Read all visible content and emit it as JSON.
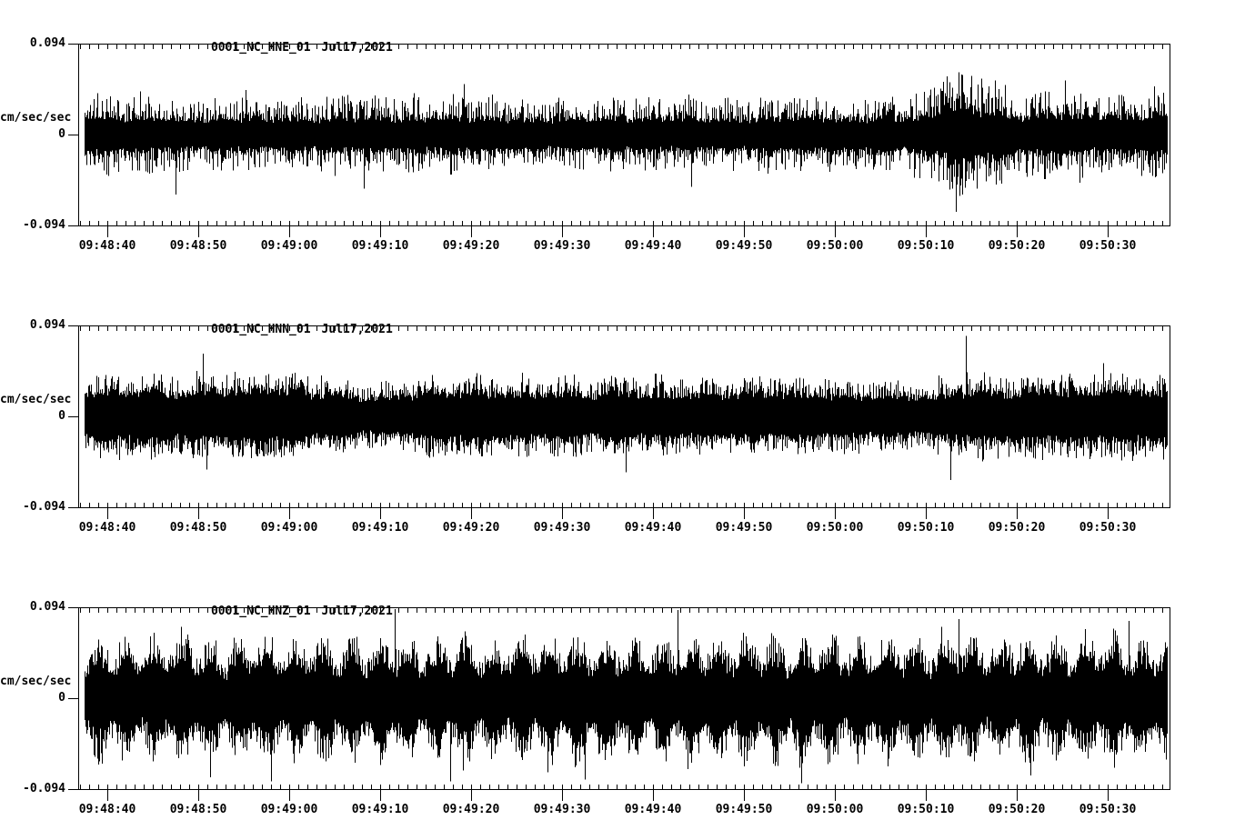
{
  "page": {
    "background": "#ffffff",
    "foreground": "#000000",
    "description": "Three-channel strong-motion seismogram plot"
  },
  "chart_data": [
    {
      "type": "line",
      "kind": "seismogram-waveform",
      "station": "0001_NC_HNE_01",
      "date": "Jul17,2021",
      "ylabel": "cm/sec/sec",
      "y_ticks": [
        "0.094",
        "0",
        "-0.094"
      ],
      "ylim": [
        -0.094,
        0.094
      ],
      "x_tick_labels": [
        "09:48:40",
        "09:48:50",
        "09:49:00",
        "09:49:10",
        "09:49:20",
        "09:49:30",
        "09:49:40",
        "09:49:50",
        "09:50:00",
        "09:50:10",
        "09:50:20",
        "09:50:30"
      ],
      "x_major_interval_sec": 10,
      "x_minor_interval_sec": 1,
      "time_span_sec": 120,
      "envelope_step_sec": 4,
      "envelope_amp": [
        0.046,
        0.044,
        0.046,
        0.04,
        0.042,
        0.04,
        0.04,
        0.044,
        0.044,
        0.042,
        0.044,
        0.042,
        0.04,
        0.04,
        0.042,
        0.04,
        0.042,
        0.04,
        0.04,
        0.042,
        0.044,
        0.04,
        0.042,
        0.046,
        0.072,
        0.056,
        0.046,
        0.052,
        0.044,
        0.048,
        0.044
      ],
      "spikes": [
        {
          "t": 10.0,
          "a": -0.062
        },
        {
          "t": 17.7,
          "a": 0.046
        },
        {
          "t": 30.7,
          "a": -0.056
        },
        {
          "t": 41.7,
          "a": 0.052
        },
        {
          "t": 66.7,
          "a": -0.054
        },
        {
          "t": 94.8,
          "a": 0.06
        },
        {
          "t": 95.8,
          "a": -0.08
        },
        {
          "t": 96.4,
          "a": 0.062
        },
        {
          "t": 98.6,
          "a": 0.058
        },
        {
          "t": 101.2,
          "a": 0.051
        },
        {
          "t": 107.8,
          "a": 0.056
        },
        {
          "t": 117.6,
          "a": 0.05
        }
      ],
      "texture": {
        "core_frac": 0.4,
        "spike_exp": 2.5,
        "wobble_depth": 0.14,
        "wobble_period_sec": 4.3,
        "burst_period_sec": 0,
        "burst_depth": 0,
        "burst_phase": 0,
        "seed": 11
      }
    },
    {
      "type": "line",
      "kind": "seismogram-waveform",
      "station": "0001_NC_HNN_01",
      "date": "Jul17,2021",
      "ylabel": "cm/sec/sec",
      "y_ticks": [
        "0.094",
        "0",
        "-0.094"
      ],
      "ylim": [
        -0.094,
        0.094
      ],
      "x_tick_labels": [
        "09:48:40",
        "09:48:50",
        "09:49:00",
        "09:49:10",
        "09:49:20",
        "09:49:30",
        "09:49:40",
        "09:49:50",
        "09:50:00",
        "09:50:10",
        "09:50:20",
        "09:50:30"
      ],
      "x_major_interval_sec": 10,
      "x_minor_interval_sec": 1,
      "time_span_sec": 120,
      "envelope_step_sec": 4,
      "envelope_amp": [
        0.046,
        0.048,
        0.046,
        0.044,
        0.046,
        0.05,
        0.046,
        0.04,
        0.034,
        0.04,
        0.046,
        0.044,
        0.042,
        0.044,
        0.042,
        0.044,
        0.042,
        0.04,
        0.042,
        0.044,
        0.042,
        0.04,
        0.038,
        0.036,
        0.044,
        0.046,
        0.048,
        0.046,
        0.048,
        0.046,
        0.046
      ],
      "spikes": [
        {
          "t": 13.0,
          "a": 0.065
        },
        {
          "t": 13.4,
          "a": -0.055
        },
        {
          "t": 59.5,
          "a": -0.058
        },
        {
          "t": 95.2,
          "a": -0.066
        },
        {
          "t": 96.9,
          "a": 0.083
        },
        {
          "t": 112.0,
          "a": 0.055
        }
      ],
      "texture": {
        "core_frac": 0.55,
        "spike_exp": 2.2,
        "wobble_depth": 0.12,
        "wobble_period_sec": 5.1,
        "burst_period_sec": 0,
        "burst_depth": 0,
        "burst_phase": 0,
        "seed": 22
      }
    },
    {
      "type": "line",
      "kind": "seismogram-waveform",
      "station": "0001_NC_HNZ_01",
      "date": "Jul17,2021",
      "ylabel": "cm/sec/sec",
      "y_ticks": [
        "0.094",
        "0",
        "-0.094"
      ],
      "ylim": [
        -0.094,
        0.094
      ],
      "x_tick_labels": [
        "09:48:40",
        "09:48:50",
        "09:49:00",
        "09:49:10",
        "09:49:20",
        "09:49:30",
        "09:49:40",
        "09:49:50",
        "09:50:00",
        "09:50:10",
        "09:50:20",
        "09:50:30"
      ],
      "x_major_interval_sec": 10,
      "x_minor_interval_sec": 1,
      "time_span_sec": 120,
      "envelope_step_sec": 4,
      "envelope_amp": [
        0.066,
        0.07,
        0.072,
        0.07,
        0.068,
        0.072,
        0.07,
        0.072,
        0.074,
        0.07,
        0.072,
        0.07,
        0.072,
        0.074,
        0.072,
        0.07,
        0.074,
        0.076,
        0.072,
        0.074,
        0.072,
        0.074,
        0.072,
        0.074,
        0.076,
        0.072,
        0.074,
        0.072,
        0.074,
        0.072,
        0.07
      ],
      "spikes": [
        {
          "t": 13.8,
          "a": -0.082
        },
        {
          "t": 20.5,
          "a": -0.086
        },
        {
          "t": 34.1,
          "a": 0.092
        },
        {
          "t": 40.2,
          "a": -0.086
        },
        {
          "t": 55.0,
          "a": -0.084
        },
        {
          "t": 65.2,
          "a": 0.091
        },
        {
          "t": 78.8,
          "a": -0.088
        },
        {
          "t": 96.1,
          "a": 0.082
        },
        {
          "t": 104.0,
          "a": -0.08
        },
        {
          "t": 114.8,
          "a": 0.08
        }
      ],
      "texture": {
        "core_frac": 0.58,
        "spike_exp": 1.8,
        "wobble_depth": 0.05,
        "wobble_period_sec": 7.7,
        "burst_period_sec": 3.1,
        "burst_depth": 0.42,
        "burst_phase": -1.47,
        "seed": 33
      }
    }
  ]
}
